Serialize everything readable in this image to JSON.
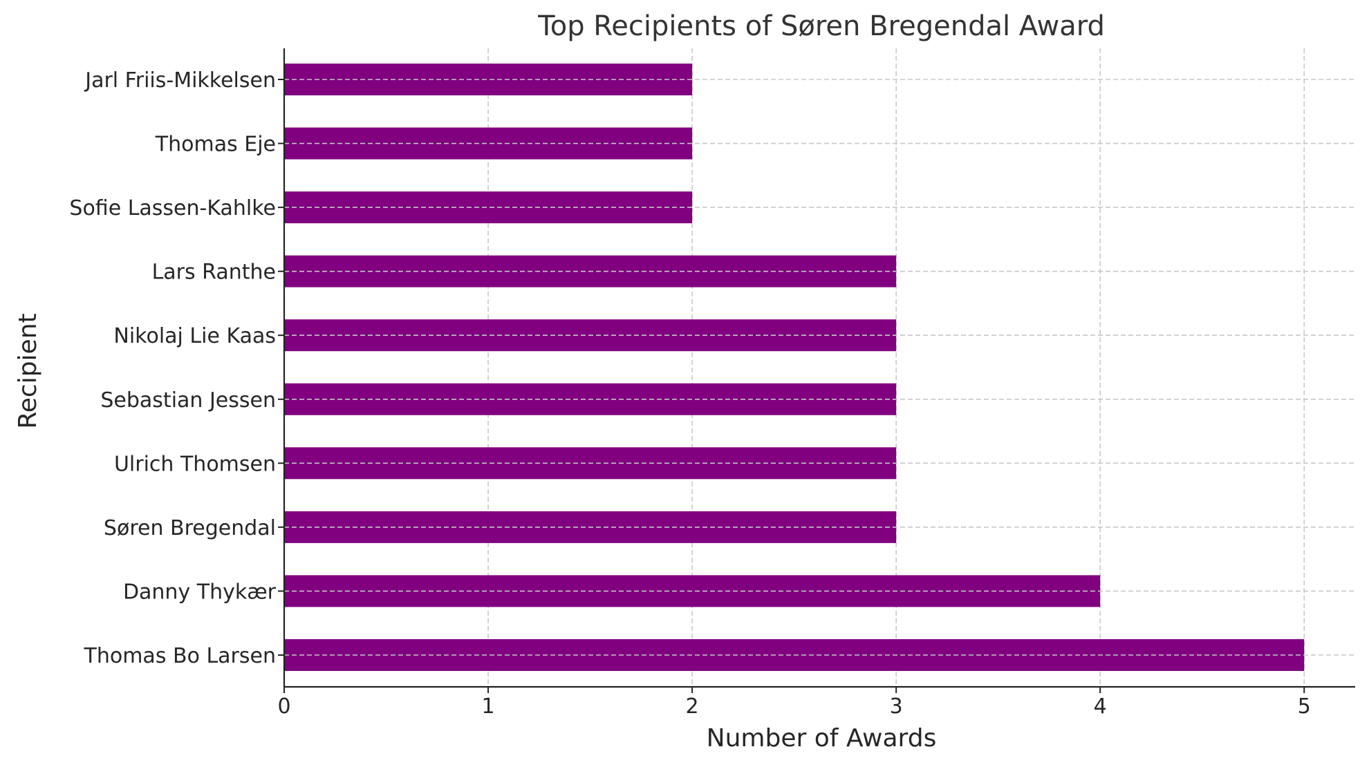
{
  "chart_data": {
    "type": "bar",
    "orientation": "horizontal",
    "title": "Top Recipients of Søren Bregendal Award",
    "xlabel": "Number of Awards",
    "ylabel": "Recipient",
    "categories": [
      "Thomas Bo Larsen",
      "Danny Thykær",
      "Søren Bregendal",
      "Ulrich Thomsen",
      "Sebastian Jessen",
      "Nikolaj Lie Kaas",
      "Lars Ranthe",
      "Sofie Lassen-Kahlke",
      "Thomas Eje",
      "Jarl Friis-Mikkelsen"
    ],
    "values": [
      5,
      4,
      3,
      3,
      3,
      3,
      3,
      2,
      2,
      2
    ],
    "xlim": [
      0,
      5.25
    ],
    "xticks": [
      0,
      1,
      2,
      3,
      4,
      5
    ],
    "grid": true,
    "bar_color": "#800080",
    "grid_color": "#c8c8c8",
    "text_color": "#262626",
    "title_color": "#333333"
  }
}
